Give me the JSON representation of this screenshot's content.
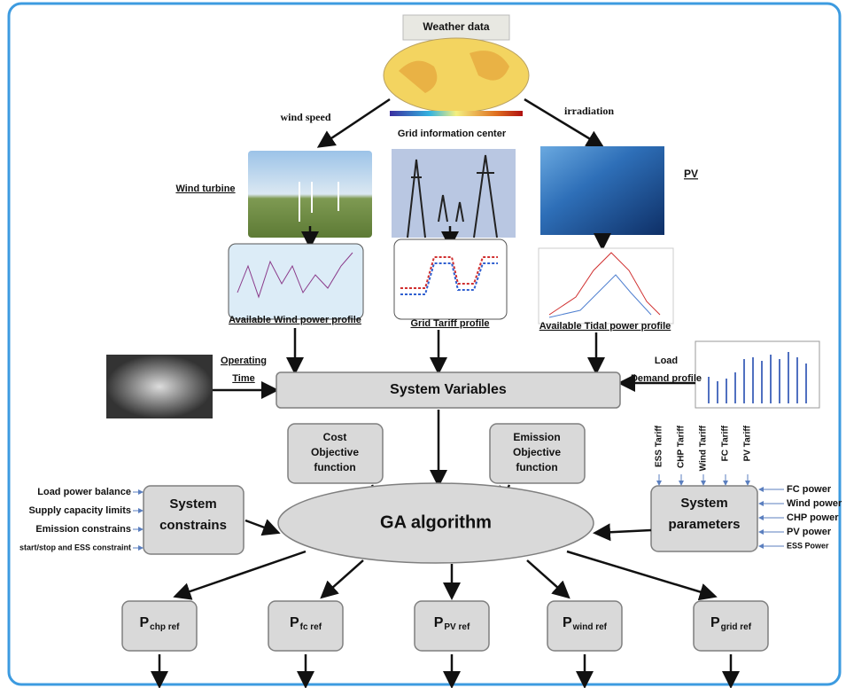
{
  "weather": {
    "title": "Weather data",
    "wind_speed": "wind speed",
    "irradiation": "irradiation",
    "grid_center": "Grid information center"
  },
  "sources": {
    "wind_turbine": "Wind   turbine",
    "pv": "PV"
  },
  "profiles": [
    "Available Wind power profile",
    "Grid Tariff profile",
    "Available Tidal power profile"
  ],
  "operating_time": [
    "Operating",
    "Time"
  ],
  "load_demand": [
    "Load",
    "Demand profile"
  ],
  "system_variables": "System Variables",
  "cost_objective": [
    "Cost",
    "Objective",
    "function"
  ],
  "emission_objective": [
    "Emission",
    "Objective",
    "function"
  ],
  "ga": "GA algorithm",
  "system_constrains": [
    "System",
    "constrains"
  ],
  "constraint_inputs": [
    "Load power balance",
    "Supply capacity limits",
    "Emission constrains",
    "start/stop and ESS constraint"
  ],
  "system_parameters": [
    "System",
    "parameters"
  ],
  "tariffs": [
    "ESS Tariff",
    "CHP Tariff",
    "Wind Tariff",
    "FC Tariff",
    "PV Tariff"
  ],
  "powers": [
    "FC power",
    "Wind power",
    "CHP power",
    "PV  power",
    "ESS Power"
  ],
  "outputs": [
    {
      "main": "P",
      "sub": "chp ref"
    },
    {
      "main": "P",
      "sub": "fc ref"
    },
    {
      "main": "P",
      "sub": "PV ref"
    },
    {
      "main": "P",
      "sub": "wind ref"
    },
    {
      "main": "P",
      "sub": "grid ref"
    }
  ]
}
